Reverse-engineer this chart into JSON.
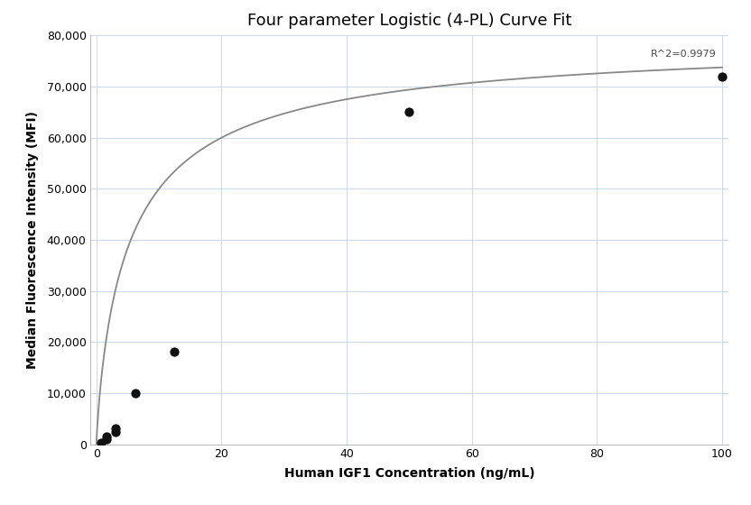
{
  "title": "Four parameter Logistic (4-PL) Curve Fit",
  "xlabel": "Human IGF1 Concentration (ng/mL)",
  "ylabel": "Median Fluorescence Intensity (MFI)",
  "scatter_x": [
    0.781,
    1.563,
    1.563,
    3.125,
    3.125,
    6.25,
    12.5,
    50,
    100
  ],
  "scatter_y": [
    400,
    1000,
    1500,
    2500,
    3200,
    10000,
    18200,
    65000,
    72000
  ],
  "scatter_color": "#111111",
  "scatter_size": 55,
  "curve_color": "#888888",
  "curve_linewidth": 1.3,
  "r_squared_text": "R^2=0.9979",
  "r_squared_x": 99,
  "r_squared_y": 75500,
  "xlim": [
    -1,
    101
  ],
  "ylim": [
    0,
    80000
  ],
  "yticks": [
    0,
    10000,
    20000,
    30000,
    40000,
    50000,
    60000,
    70000,
    80000
  ],
  "xticks": [
    0,
    20,
    40,
    60,
    80,
    100
  ],
  "grid_color": "#c8d8e8",
  "grid_alpha": 1.0,
  "bg_color": "#ffffff",
  "title_fontsize": 13,
  "label_fontsize": 10,
  "tick_fontsize": 9,
  "4pl_A": 50,
  "4pl_B": 0.85,
  "4pl_C": 5.5,
  "4pl_D": 80000
}
